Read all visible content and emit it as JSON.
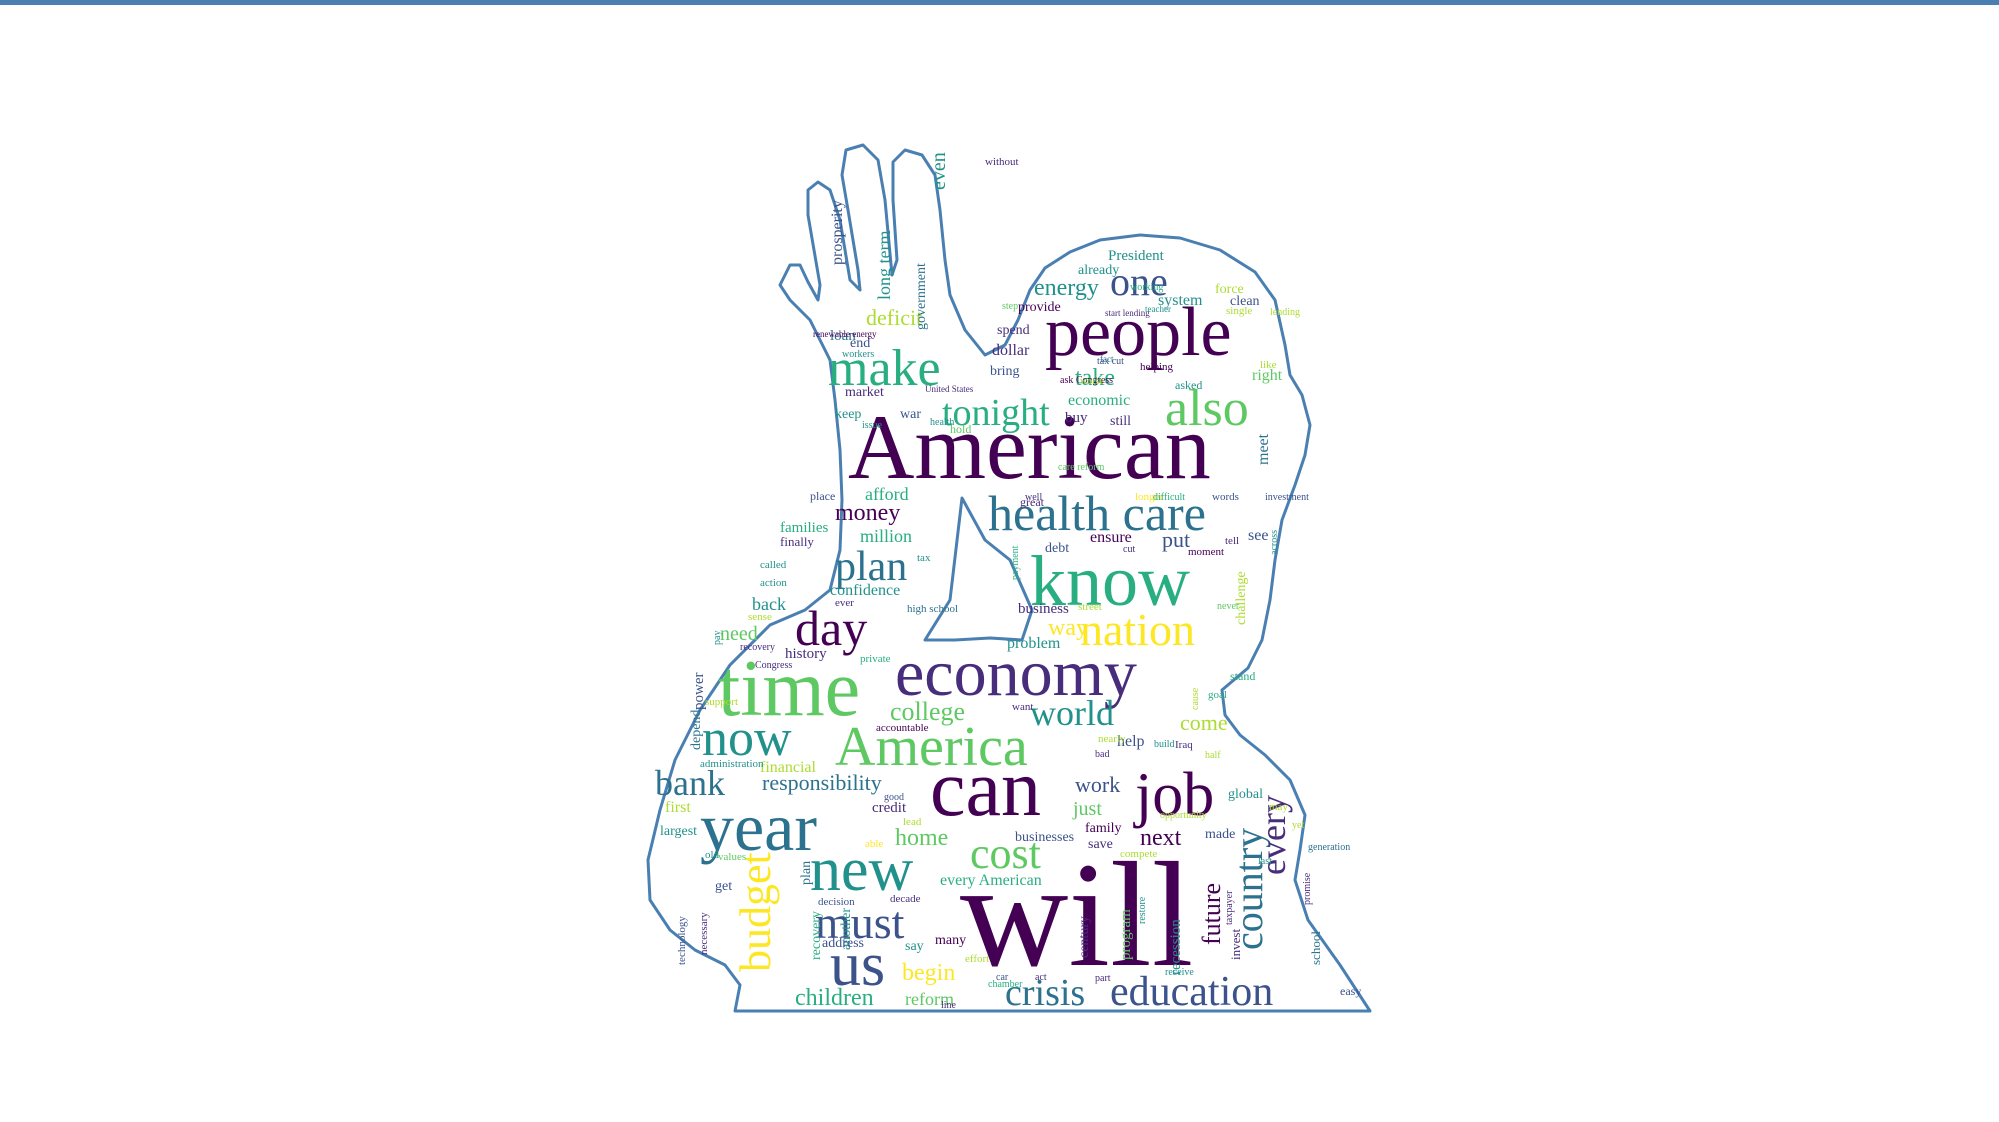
{
  "frame": {
    "accent_color": "#4a7fb2"
  },
  "outline": {
    "color": "#4a7fb2",
    "shape": "hand-over-head silhouette"
  },
  "palette": [
    "#440154",
    "#472d7b",
    "#3b528b",
    "#2c728e",
    "#21918c",
    "#28ae80",
    "#5ec962",
    "#addc30",
    "#fde725"
  ],
  "words": [
    {
      "t": "American",
      "c": "#440154"
    },
    {
      "t": "will",
      "c": "#440154"
    },
    {
      "t": "know",
      "c": "#28ae80"
    },
    {
      "t": "people",
      "c": "#440154"
    },
    {
      "t": "economy",
      "c": "#472d7b"
    },
    {
      "t": "time",
      "c": "#5ec962"
    },
    {
      "t": "year",
      "c": "#2c728e"
    },
    {
      "t": "can",
      "c": "#440154"
    },
    {
      "t": "job",
      "c": "#440154"
    },
    {
      "t": "America",
      "c": "#5ec962"
    },
    {
      "t": "new",
      "c": "#21918c"
    },
    {
      "t": "now",
      "c": "#21918c"
    },
    {
      "t": "make",
      "c": "#28ae80"
    },
    {
      "t": "also",
      "c": "#5ec962"
    },
    {
      "t": "health care",
      "c": "#2c728e"
    },
    {
      "t": "us",
      "c": "#3b528b"
    },
    {
      "t": "education",
      "c": "#3b528b"
    },
    {
      "t": "nation",
      "c": "#fde725"
    },
    {
      "t": "day",
      "c": "#440154"
    },
    {
      "t": "plan",
      "c": "#2c728e"
    },
    {
      "t": "tonight",
      "c": "#28ae80"
    },
    {
      "t": "must",
      "c": "#3b528b"
    },
    {
      "t": "cost",
      "c": "#5ec962"
    },
    {
      "t": "bank",
      "c": "#2c728e"
    },
    {
      "t": "budget",
      "c": "#fde725"
    },
    {
      "t": "country",
      "c": "#2c728e"
    },
    {
      "t": "one",
      "c": "#3b528b"
    },
    {
      "t": "world",
      "c": "#21918c"
    },
    {
      "t": "crisis",
      "c": "#2c728e"
    },
    {
      "t": "every",
      "c": "#472d7b"
    },
    {
      "t": "children",
      "c": "#28ae80"
    },
    {
      "t": "future",
      "c": "#440154"
    },
    {
      "t": "college",
      "c": "#5ec962"
    },
    {
      "t": "responsibility",
      "c": "#2c728e"
    },
    {
      "t": "energy",
      "c": "#21918c"
    },
    {
      "t": "take",
      "c": "#28ae80"
    },
    {
      "t": "money",
      "c": "#440154"
    },
    {
      "t": "home",
      "c": "#5ec962"
    },
    {
      "t": "begin",
      "c": "#fde725"
    },
    {
      "t": "come",
      "c": "#addc30"
    },
    {
      "t": "next",
      "c": "#440154"
    },
    {
      "t": "work",
      "c": "#3b528b"
    },
    {
      "t": "way",
      "c": "#fde725"
    },
    {
      "t": "need",
      "c": "#5ec962"
    },
    {
      "t": "put",
      "c": "#3b528b"
    },
    {
      "t": "deficit",
      "c": "#addc30"
    },
    {
      "t": "just",
      "c": "#5ec962"
    },
    {
      "t": "million",
      "c": "#28ae80"
    },
    {
      "t": "long term",
      "c": "#21918c"
    },
    {
      "t": "prosperity",
      "c": "#3b528b"
    },
    {
      "t": "even",
      "c": "#21918c"
    },
    {
      "t": "government",
      "c": "#2c728e"
    },
    {
      "t": "President",
      "c": "#21918c"
    },
    {
      "t": "system",
      "c": "#21918c"
    },
    {
      "t": "clean",
      "c": "#3b528b"
    },
    {
      "t": "force",
      "c": "#addc30"
    },
    {
      "t": "already",
      "c": "#21918c"
    },
    {
      "t": "provide",
      "c": "#440154"
    },
    {
      "t": "spend",
      "c": "#472d7b"
    },
    {
      "t": "dollar",
      "c": "#472d7b"
    },
    {
      "t": "bring",
      "c": "#3b528b"
    },
    {
      "t": "loan",
      "c": "#2c728e"
    },
    {
      "t": "end",
      "c": "#3b528b"
    },
    {
      "t": "workers",
      "c": "#21918c"
    },
    {
      "t": "market",
      "c": "#472d7b"
    },
    {
      "t": "keep",
      "c": "#21918c"
    },
    {
      "t": "war",
      "c": "#3b528b"
    },
    {
      "t": "economic",
      "c": "#28ae80"
    },
    {
      "t": "buy",
      "c": "#472d7b"
    },
    {
      "t": "still",
      "c": "#472d7b"
    },
    {
      "t": "right",
      "c": "#5ec962"
    },
    {
      "t": "like",
      "c": "#addc30"
    },
    {
      "t": "asked",
      "c": "#21918c"
    },
    {
      "t": "helping",
      "c": "#440154"
    },
    {
      "t": "meet",
      "c": "#2c728e"
    },
    {
      "t": "afford",
      "c": "#28ae80"
    },
    {
      "t": "place",
      "c": "#3b528b"
    },
    {
      "t": "families",
      "c": "#28ae80"
    },
    {
      "t": "finally",
      "c": "#472d7b"
    },
    {
      "t": "debt",
      "c": "#3b528b"
    },
    {
      "t": "ensure",
      "c": "#440154"
    },
    {
      "t": "tell",
      "c": "#472d7b"
    },
    {
      "t": "see",
      "c": "#3b528b"
    },
    {
      "t": "challenge",
      "c": "#addc30"
    },
    {
      "t": "confidence",
      "c": "#21918c"
    },
    {
      "t": "ever",
      "c": "#472d7b"
    },
    {
      "t": "back",
      "c": "#21918c"
    },
    {
      "t": "business",
      "c": "#472d7b"
    },
    {
      "t": "problem",
      "c": "#21918c"
    },
    {
      "t": "history",
      "c": "#472d7b"
    },
    {
      "t": "power",
      "c": "#3b528b"
    },
    {
      "t": "depend",
      "c": "#2c728e"
    },
    {
      "t": "first",
      "c": "#addc30"
    },
    {
      "t": "largest",
      "c": "#21918c"
    },
    {
      "t": "get",
      "c": "#3b528b"
    },
    {
      "t": "plan",
      "c": "#2c728e"
    },
    {
      "t": "recovery",
      "c": "#28ae80"
    },
    {
      "t": "another",
      "c": "#21918c"
    },
    {
      "t": "address",
      "c": "#3b528b"
    },
    {
      "t": "say",
      "c": "#21918c"
    },
    {
      "t": "many",
      "c": "#440154"
    },
    {
      "t": "reform",
      "c": "#5ec962"
    },
    {
      "t": "family",
      "c": "#440154"
    },
    {
      "t": "save",
      "c": "#472d7b"
    },
    {
      "t": "help",
      "c": "#3b528b"
    },
    {
      "t": "credit",
      "c": "#472d7b"
    },
    {
      "t": "businesses",
      "c": "#3b528b"
    },
    {
      "t": "every American",
      "c": "#28ae80"
    },
    {
      "t": "made",
      "c": "#3b528b"
    },
    {
      "t": "global",
      "c": "#21918c"
    },
    {
      "t": "program",
      "c": "#5ec962"
    },
    {
      "t": "recession",
      "c": "#21918c"
    },
    {
      "t": "invest",
      "c": "#472d7b"
    },
    {
      "t": "school",
      "c": "#2c728e"
    },
    {
      "t": "century",
      "c": "#472d7b"
    },
    {
      "t": "financial",
      "c": "#addc30"
    },
    {
      "t": "decade",
      "c": "#472d7b"
    },
    {
      "t": "decision",
      "c": "#3b528b"
    },
    {
      "t": "effort",
      "c": "#addc30"
    },
    {
      "t": "old",
      "c": "#21918c"
    },
    {
      "t": "values",
      "c": "#5ec962"
    },
    {
      "t": "necessary",
      "c": "#472d7b"
    },
    {
      "t": "technology",
      "c": "#3b528b"
    },
    {
      "t": "lead",
      "c": "#addc30"
    },
    {
      "t": "able",
      "c": "#fde725"
    },
    {
      "t": "compete",
      "c": "#addc30"
    },
    {
      "t": "opportunity",
      "c": "#addc30"
    },
    {
      "t": "called",
      "c": "#21918c"
    },
    {
      "t": "action",
      "c": "#21918c"
    },
    {
      "t": "sense",
      "c": "#addc30"
    },
    {
      "t": "recovery",
      "c": "#472d7b"
    },
    {
      "t": "Congress",
      "c": "#472d7b"
    },
    {
      "t": "private",
      "c": "#28ae80"
    },
    {
      "t": "pay",
      "c": "#21918c"
    },
    {
      "t": "support",
      "c": "#addc30"
    },
    {
      "t": "administration",
      "c": "#21918c"
    },
    {
      "t": "accountable",
      "c": "#440154"
    },
    {
      "t": "good",
      "c": "#3b528b"
    },
    {
      "t": "want",
      "c": "#472d7b"
    },
    {
      "t": "nearly",
      "c": "#addc30"
    },
    {
      "t": "bad",
      "c": "#472d7b"
    },
    {
      "t": "build",
      "c": "#21918c"
    },
    {
      "t": "half",
      "c": "#addc30"
    },
    {
      "t": "Iraq",
      "c": "#472d7b"
    },
    {
      "t": "cause",
      "c": "#addc30"
    },
    {
      "t": "goal",
      "c": "#28ae80"
    },
    {
      "t": "stand",
      "c": "#28ae80"
    },
    {
      "t": "payment",
      "c": "#28ae80"
    },
    {
      "t": "street",
      "c": "#addc30"
    },
    {
      "t": "never",
      "c": "#5ec962"
    },
    {
      "t": "across",
      "c": "#21918c"
    },
    {
      "t": "moment",
      "c": "#440154"
    },
    {
      "t": "cut",
      "c": "#472d7b"
    },
    {
      "t": "tax",
      "c": "#21918c"
    },
    {
      "t": "high school",
      "c": "#2c728e"
    },
    {
      "t": "investment",
      "c": "#3b528b"
    },
    {
      "t": "words",
      "c": "#3b528b"
    },
    {
      "t": "longer",
      "c": "#fde725"
    },
    {
      "t": "difficult",
      "c": "#28ae80"
    },
    {
      "t": "well",
      "c": "#472d7b"
    },
    {
      "t": "care reform",
      "c": "#5ec962"
    },
    {
      "t": "hold",
      "c": "#5ec962"
    },
    {
      "t": "health",
      "c": "#21918c"
    },
    {
      "t": "issue",
      "c": "#21918c"
    },
    {
      "t": "ask Congress",
      "c": "#440154"
    },
    {
      "t": "worse",
      "c": "#addc30"
    },
    {
      "t": "tax cut",
      "c": "#3b528b"
    },
    {
      "t": "fact",
      "c": "#2c728e"
    },
    {
      "t": "working",
      "c": "#28ae80"
    },
    {
      "t": "step",
      "c": "#5ec962"
    },
    {
      "t": "United States",
      "c": "#472d7b"
    },
    {
      "t": "renewable energy",
      "c": "#440154"
    },
    {
      "t": "without",
      "c": "#472d7b"
    },
    {
      "t": "start lending",
      "c": "#472d7b"
    },
    {
      "t": "teacher",
      "c": "#21918c"
    },
    {
      "t": "single",
      "c": "#addc30"
    },
    {
      "t": "lending",
      "c": "#addc30"
    },
    {
      "t": "generation",
      "c": "#2c728e"
    },
    {
      "t": "promise",
      "c": "#472d7b"
    },
    {
      "t": "taxpayer",
      "c": "#472d7b"
    },
    {
      "t": "restore",
      "c": "#21918c"
    },
    {
      "t": "receive",
      "c": "#21918c"
    },
    {
      "t": "part",
      "c": "#472d7b"
    },
    {
      "t": "act",
      "c": "#472d7b"
    },
    {
      "t": "car",
      "c": "#3b528b"
    },
    {
      "t": "chamber",
      "c": "#28ae80"
    },
    {
      "t": "line",
      "c": "#472d7b"
    },
    {
      "t": "easy",
      "c": "#3b528b"
    },
    {
      "t": "may",
      "c": "#addc30"
    },
    {
      "t": "yet",
      "c": "#addc30"
    },
    {
      "t": "last",
      "c": "#21918c"
    },
    {
      "t": "great",
      "c": "#472d7b"
    }
  ]
}
